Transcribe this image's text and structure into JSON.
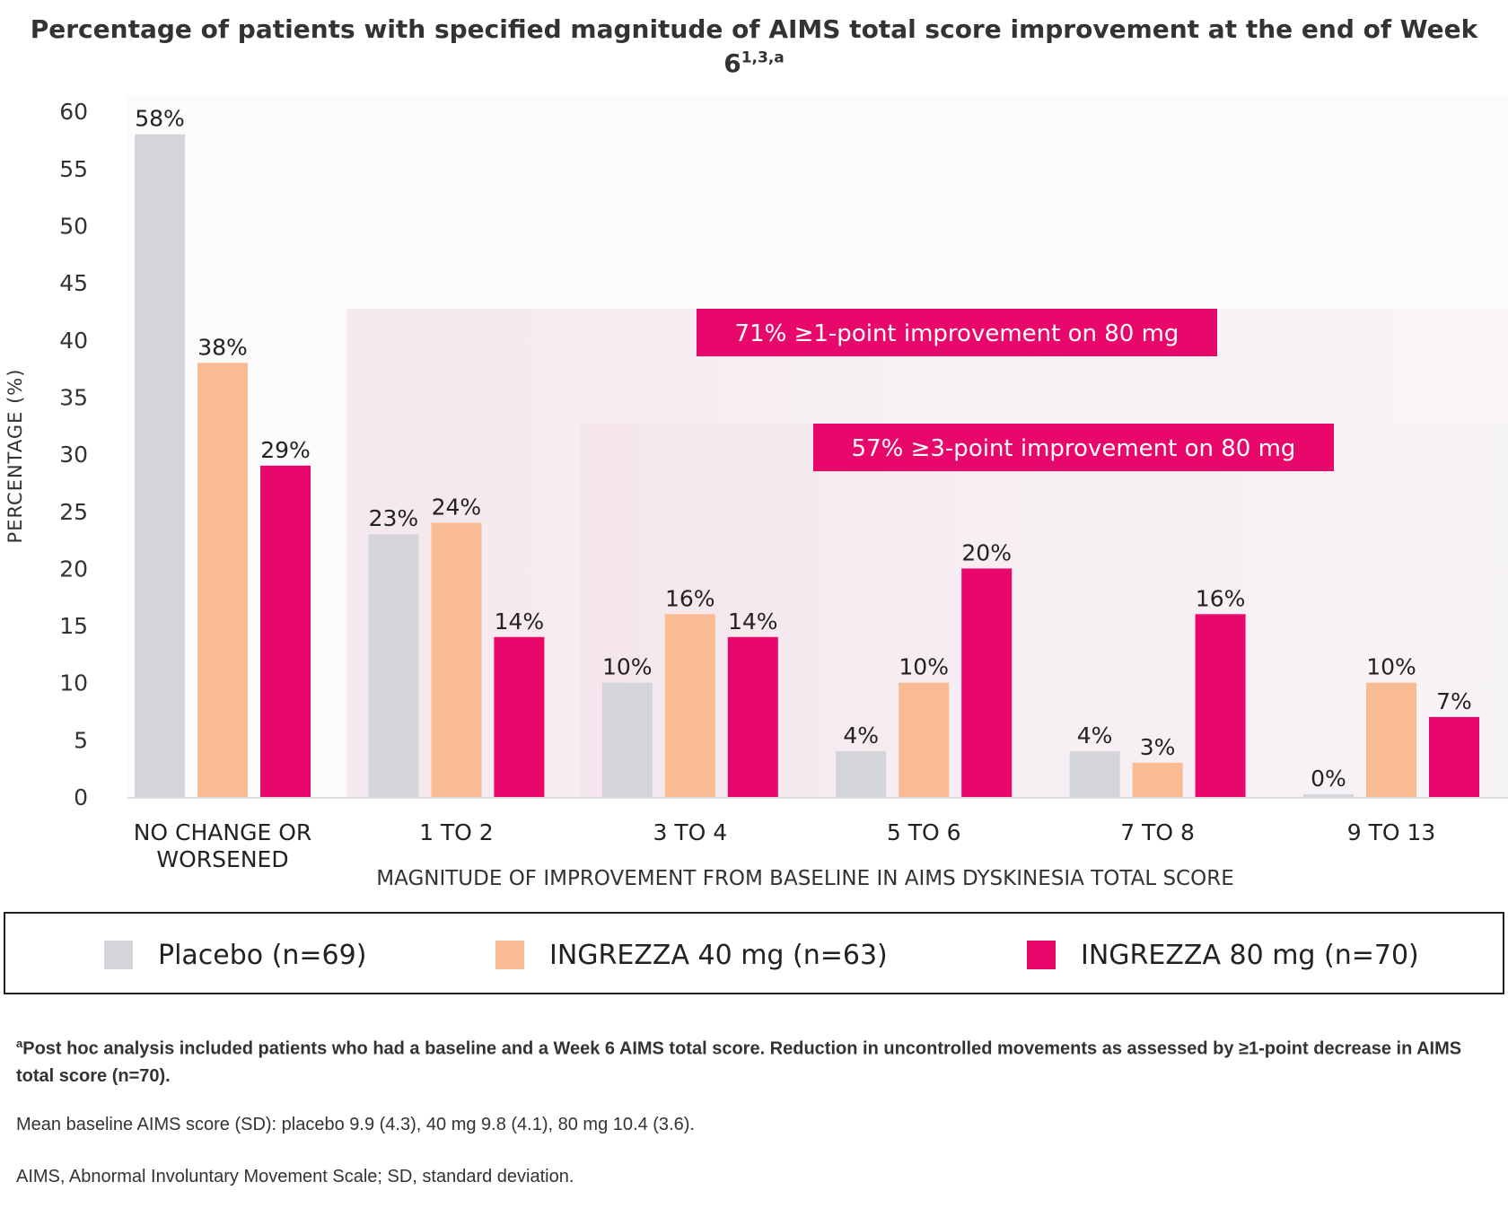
{
  "title": {
    "text": "Percentage of patients with specified magnitude of AIMS total score improvement at the end of Week 6",
    "superscript": "1,3,a"
  },
  "chart_data": {
    "type": "bar",
    "ylabel": "PERCENTAGE (%)",
    "xlabel": "MAGNITUDE OF IMPROVEMENT FROM BASELINE IN AIMS DYSKINESIA TOTAL SCORE",
    "ylim": [
      0,
      60
    ],
    "yticks": [
      0,
      5,
      10,
      15,
      20,
      25,
      30,
      35,
      40,
      45,
      50,
      55,
      60
    ],
    "categories": [
      [
        "NO CHANGE OR",
        "WORSENED"
      ],
      [
        "1 TO 2"
      ],
      [
        "3 TO 4"
      ],
      [
        "5 TO 6"
      ],
      [
        "7 TO 8"
      ],
      [
        "9 TO 13"
      ]
    ],
    "series": [
      {
        "name": "Placebo (n=69)",
        "color": "#d4d4db",
        "values": [
          58,
          23,
          10,
          4,
          4,
          0
        ],
        "labels": [
          "58%",
          "23%",
          "10%",
          "4%",
          "4%",
          "0%"
        ]
      },
      {
        "name": "INGREZZA 40 mg (n=63)",
        "color": "#f9bb91",
        "values": [
          38,
          24,
          16,
          10,
          3,
          10
        ],
        "labels": [
          "38%",
          "24%",
          "16%",
          "10%",
          "3%",
          "10%"
        ]
      },
      {
        "name": "INGREZZA 80 mg (n=70)",
        "color": "#e8076a",
        "values": [
          29,
          14,
          14,
          20,
          16,
          7
        ],
        "labels": [
          "29%",
          "14%",
          "14%",
          "20%",
          "16%",
          "7%"
        ]
      }
    ],
    "annotations": [
      {
        "text": "71% ≥1-point improvement on 80 mg",
        "from_category": 1,
        "box_color": "#e8076a"
      },
      {
        "text": "57% ≥3-point improvement on 80 mg",
        "from_category": 2,
        "box_color": "#e8076a"
      }
    ],
    "grid": false,
    "legend_position": "bottom"
  },
  "footnotes": {
    "a_marker": "a",
    "a_text": "Post hoc analysis included patients who had a baseline and a Week 6 AIMS total score. Reduction in uncontrolled movements as assessed by ≥1-point decrease in AIMS total score (n=70).",
    "baseline": "Mean baseline AIMS score (SD): placebo 9.9 (4.3), 40 mg 9.8 (4.1), 80 mg 10.4 (3.6).",
    "abbrev": "AIMS, Abnormal Involuntary Movement Scale; SD, standard deviation."
  }
}
